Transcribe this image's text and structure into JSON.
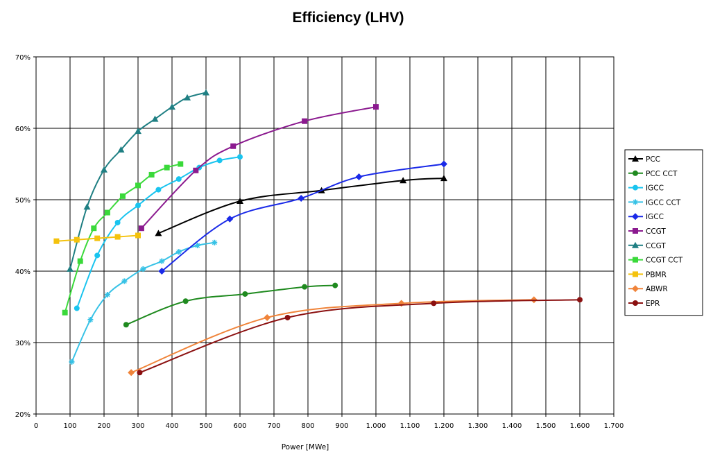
{
  "chart_data": {
    "type": "line",
    "title": "Efficiency (LHV)",
    "xlabel": "Power [MWe]",
    "ylabel": "",
    "xlim": [
      0,
      1700
    ],
    "ylim": [
      20,
      70
    ],
    "xticks": [
      0,
      100,
      200,
      300,
      400,
      500,
      600,
      700,
      800,
      900,
      1000,
      1100,
      1200,
      1300,
      1400,
      1500,
      1600,
      1700
    ],
    "xtick_labels": [
      "0",
      "100",
      "200",
      "300",
      "400",
      "500",
      "600",
      "700",
      "800",
      "900",
      "1.000",
      "1.100",
      "1.200",
      "1.300",
      "1.400",
      "1.500",
      "1.600",
      "1.700"
    ],
    "yticks": [
      20,
      30,
      40,
      50,
      60,
      70
    ],
    "ytick_labels": [
      "20%",
      "30%",
      "40%",
      "50%",
      "60%",
      "70%"
    ],
    "grid": true,
    "legend_position": "right",
    "series": [
      {
        "name": "PCC",
        "color": "#000000",
        "marker": "triangle",
        "x": [
          360,
          600,
          840,
          1080,
          1200
        ],
        "y": [
          45.3,
          49.8,
          51.3,
          52.7,
          53.0
        ]
      },
      {
        "name": "PCC CCT",
        "color": "#1f8a1f",
        "marker": "circle",
        "x": [
          265,
          440,
          615,
          790,
          880
        ],
        "y": [
          32.5,
          35.8,
          36.8,
          37.8,
          38.0
        ]
      },
      {
        "name": "IGCC",
        "color": "#19c4ef",
        "marker": "circle",
        "x": [
          120,
          180,
          240,
          300,
          360,
          420,
          480,
          540,
          600
        ],
        "y": [
          34.8,
          42.2,
          46.8,
          49.2,
          51.4,
          52.9,
          54.5,
          55.5,
          56.0
        ]
      },
      {
        "name": "IGCC CCT",
        "color": "#37c2e6",
        "marker": "star",
        "x": [
          105,
          160,
          210,
          260,
          315,
          370,
          420,
          475,
          525
        ],
        "y": [
          27.3,
          33.2,
          36.7,
          38.6,
          40.3,
          41.4,
          42.7,
          43.6,
          44.0
        ]
      },
      {
        "name": "IGCC",
        "color": "#1a2ae8",
        "marker": "diamond",
        "x": [
          370,
          570,
          780,
          950,
          1200
        ],
        "y": [
          40.0,
          47.3,
          50.2,
          53.2,
          55.0
        ]
      },
      {
        "name": "CCGT",
        "color": "#8b1a8f",
        "marker": "square",
        "x": [
          310,
          470,
          580,
          790,
          1000
        ],
        "y": [
          46.0,
          54.1,
          57.5,
          61.0,
          63.0
        ]
      },
      {
        "name": "CCGT",
        "color": "#1f7f83",
        "marker": "triangle",
        "x": [
          100,
          150,
          200,
          250,
          300,
          350,
          400,
          445,
          500
        ],
        "y": [
          40.3,
          49.0,
          54.2,
          57.0,
          59.6,
          61.3,
          63.0,
          64.3,
          65.0
        ]
      },
      {
        "name": "CCGT CCT",
        "color": "#3ad93a",
        "marker": "square",
        "x": [
          85,
          130,
          170,
          210,
          255,
          300,
          340,
          385,
          425
        ],
        "y": [
          34.2,
          41.4,
          46.0,
          48.2,
          50.5,
          52.0,
          53.5,
          54.5,
          55.0
        ]
      },
      {
        "name": "PBMR",
        "color": "#f4c20d",
        "marker": "square",
        "x": [
          60,
          120,
          180,
          240,
          300
        ],
        "y": [
          44.2,
          44.4,
          44.6,
          44.8,
          45.0
        ]
      },
      {
        "name": "ABWR",
        "color": "#f0843a",
        "marker": "diamond",
        "x": [
          280,
          680,
          1075,
          1465
        ],
        "y": [
          25.8,
          33.5,
          35.5,
          36.0
        ]
      },
      {
        "name": "EPR",
        "color": "#8b1010",
        "marker": "circle",
        "x": [
          305,
          740,
          1170,
          1600
        ],
        "y": [
          25.8,
          33.5,
          35.5,
          36.0
        ]
      }
    ]
  }
}
